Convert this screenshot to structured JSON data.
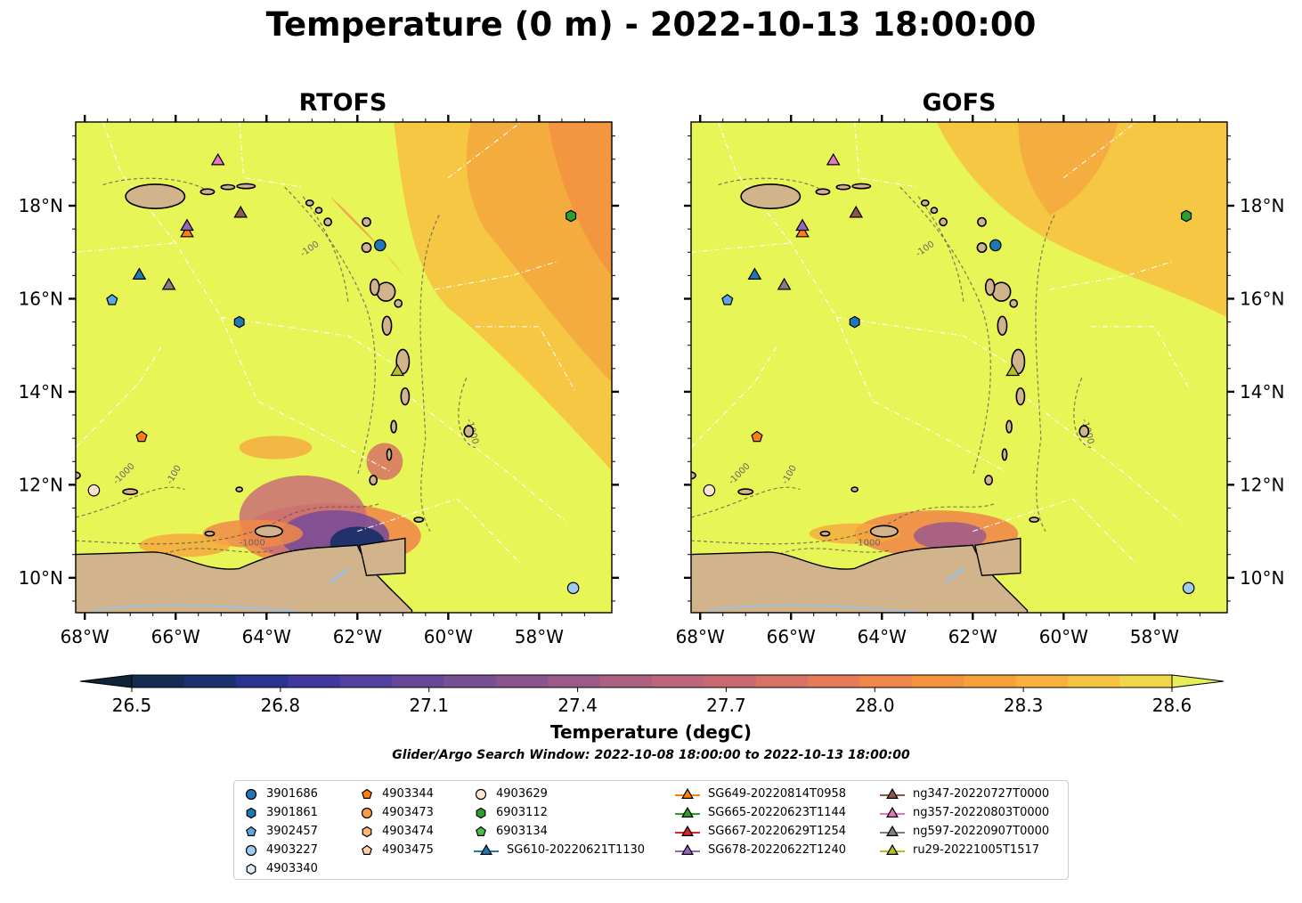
{
  "title": "Temperature (0 m) - 2022-10-13 18:00:00",
  "panels": [
    {
      "id": "rtofs",
      "title": "RTOFS"
    },
    {
      "id": "gofs",
      "title": "GOFS"
    }
  ],
  "lon_ticks": [
    "68°W",
    "66°W",
    "64°W",
    "62°W",
    "60°W",
    "58°W"
  ],
  "lat_ticks": [
    "18°N",
    "16°N",
    "14°N",
    "12°N",
    "10°N"
  ],
  "contour_labels": [
    "-100",
    "-1000"
  ],
  "colorbar": {
    "label": "Temperature (degC)",
    "ticks": [
      "26.5",
      "26.8",
      "27.1",
      "27.4",
      "27.7",
      "28.0",
      "28.3",
      "28.6"
    ],
    "min": 26.5,
    "max": 28.6,
    "extend": "both",
    "colors": [
      "#0f2439",
      "#142c52",
      "#1a3070",
      "#2a3490",
      "#40389e",
      "#53409e",
      "#66479a",
      "#784e95",
      "#8a558f",
      "#9c5a89",
      "#ad5f82",
      "#bd657a",
      "#ca6a70",
      "#d87264",
      "#e57b58",
      "#ef864a",
      "#f5923e",
      "#f8a03a",
      "#f9b03c",
      "#f6c442",
      "#f1d84a",
      "#e8ee55"
    ]
  },
  "search_window": "Glider/Argo Search Window: 2022-10-08 18:00:00 to 2022-10-13 18:00:00",
  "colors": {
    "land": "#d2b48c",
    "ocean_base": "#e8f557",
    "rivers": "#9ebfe0"
  },
  "legend": {
    "columns": [
      [
        {
          "label": "3901686",
          "marker": "circle",
          "color": "#1f77b4"
        },
        {
          "label": "3901861",
          "marker": "hexagon",
          "color": "#1f77b4"
        },
        {
          "label": "3902457",
          "marker": "pentagon",
          "color": "#5aa8e0"
        },
        {
          "label": "4903227",
          "marker": "circle",
          "color": "#9fcbee"
        },
        {
          "label": "4903340",
          "marker": "hexagon",
          "color": "#d8ecfb"
        }
      ],
      [
        {
          "label": "4903344",
          "marker": "pentagon",
          "color": "#ff7f0e"
        },
        {
          "label": "4903473",
          "marker": "circle",
          "color": "#fd9a43"
        },
        {
          "label": "4903474",
          "marker": "hexagon",
          "color": "#fdb578"
        },
        {
          "label": "4903475",
          "marker": "pentagon",
          "color": "#fdd0ab"
        }
      ],
      [
        {
          "label": "4903629",
          "marker": "circle",
          "color": "#ffe5d2"
        },
        {
          "label": "6903112",
          "marker": "hexagon",
          "color": "#2ca02c"
        },
        {
          "label": "6903134",
          "marker": "pentagon",
          "color": "#4cba4c"
        },
        {
          "label": "SG610-20220621T1130",
          "marker": "triangle-line",
          "color": "#1f77b4"
        }
      ],
      [
        {
          "label": "SG649-20220814T0958",
          "marker": "triangle-line",
          "color": "#ff7f0e"
        },
        {
          "label": "SG665-20220623T1144",
          "marker": "triangle-line",
          "color": "#2ca02c"
        },
        {
          "label": "SG667-20220629T1254",
          "marker": "triangle-line",
          "color": "#d62728"
        },
        {
          "label": "SG678-20220622T1240",
          "marker": "triangle-line",
          "color": "#9467bd"
        }
      ],
      [
        {
          "label": "ng347-20220727T0000",
          "marker": "triangle-line",
          "color": "#8c564b"
        },
        {
          "label": "ng357-20220803T0000",
          "marker": "triangle-line",
          "color": "#e377c2"
        },
        {
          "label": "ng597-20220907T0000",
          "marker": "triangle-line",
          "color": "#7f7f7f"
        },
        {
          "label": "ru29-20221005T1517",
          "marker": "triangle-line",
          "color": "#bcbd22"
        }
      ]
    ]
  },
  "observations": [
    {
      "id": "3901686",
      "lon": -61.5,
      "lat": 17.15
    },
    {
      "id": "3901861",
      "lon": -64.6,
      "lat": 15.5
    },
    {
      "id": "3902457",
      "lon": -67.4,
      "lat": 15.97
    },
    {
      "id": "4903227",
      "lon": -57.25,
      "lat": 9.78
    },
    {
      "id": "4903344",
      "lon": -66.75,
      "lat": 13.03
    },
    {
      "id": "4903629",
      "lon": -67.8,
      "lat": 11.88
    },
    {
      "id": "6903112",
      "lon": -57.3,
      "lat": 17.78
    },
    {
      "id": "SG610-20220621T1130",
      "lon": -66.8,
      "lat": 16.52
    },
    {
      "id": "SG649-20220814T0958",
      "lon": -65.75,
      "lat": 17.43
    },
    {
      "id": "SG678-20220622T1240",
      "lon": -65.75,
      "lat": 17.57
    },
    {
      "id": "ng347-20220727T0000",
      "lon": -64.57,
      "lat": 17.85
    },
    {
      "id": "ng357-20220803T0000",
      "lon": -65.07,
      "lat": 18.98
    },
    {
      "id": "ng597-20220907T0000",
      "lon": -66.15,
      "lat": 16.3
    },
    {
      "id": "ru29-20221005T1517",
      "lon": -61.12,
      "lat": 14.45
    }
  ],
  "map_extent": {
    "lon_min": -68.2,
    "lon_max": -56.4,
    "lat_min": 9.25,
    "lat_max": 19.8
  }
}
